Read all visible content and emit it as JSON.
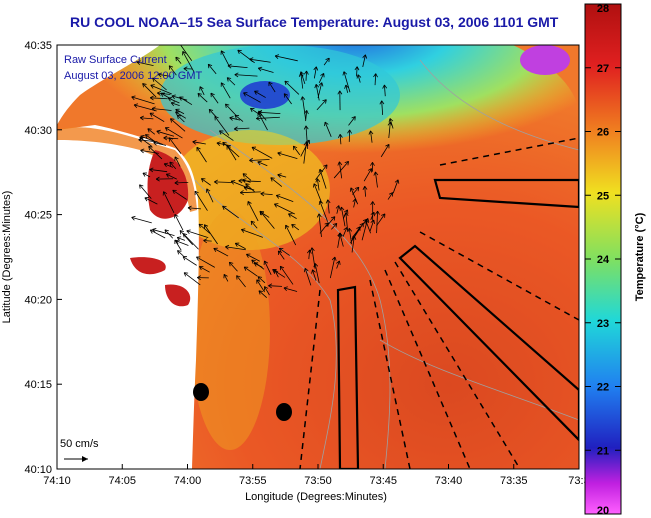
{
  "title": "RU COOL  NOAA–15  Sea Surface Temperature:  August 03, 2006 1101 GMT",
  "legend": {
    "line1": "Raw Surface Current",
    "line2": "August 03, 2006 12:00 GMT",
    "scale_label": "50 cm/s"
  },
  "axes": {
    "xlabel": "Longitude (Degrees:Minutes)",
    "ylabel": "Latitude (Degrees:Minutes)",
    "x_ticks": [
      "74:10",
      "74:05",
      "74:00",
      "73:55",
      "73:50",
      "73:45",
      "73:40",
      "73:35",
      "73:3"
    ],
    "y_ticks": [
      "40:35",
      "40:30",
      "40:25",
      "40:20",
      "40:15",
      "40:10"
    ]
  },
  "colorbar": {
    "title": "Temperature (°C)",
    "ticks": [
      "28",
      "27",
      "26",
      "25",
      "24",
      "23",
      "22",
      "21",
      "20"
    ],
    "min": 20,
    "max": 28
  },
  "colors": {
    "title": "#1a1aa8",
    "land": "#ffffff",
    "warm_water": "#e8401c",
    "cool_water": "#f0c020",
    "cold_water": "#20c8e8"
  }
}
